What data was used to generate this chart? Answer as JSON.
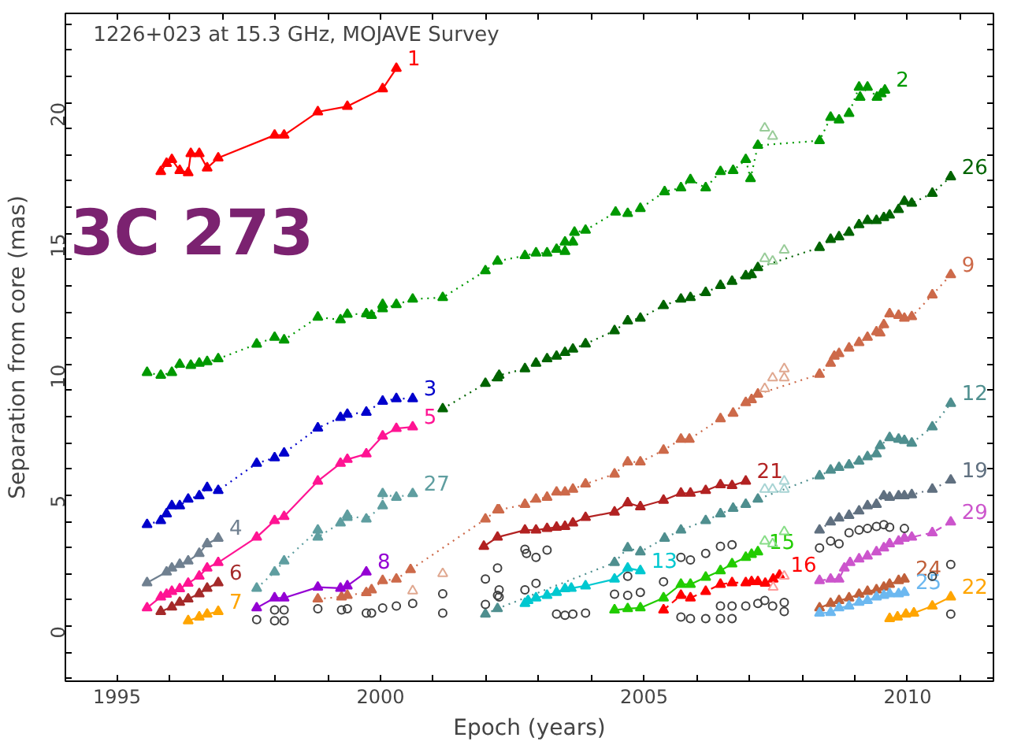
{
  "chart_data": {
    "type": "line",
    "title": "1226+023 at 15.3 GHz, MOJAVE Survey",
    "xlabel": "Epoch (years)",
    "ylabel": "Separation from core (mas)",
    "annotations": [
      "3C 273"
    ],
    "xlim": [
      1994.02,
      2011.63
    ],
    "ylim": [
      -2.1,
      23.4
    ],
    "grid": false,
    "marker": "triangle",
    "xticks": [
      1995,
      {
        "value": 1996,
        "label": null
      },
      {
        "value": 1997,
        "label": null
      },
      {
        "value": 1998,
        "label": null
      },
      {
        "value": 1999,
        "label": null
      },
      2000,
      {
        "value": 2001,
        "label": null
      },
      {
        "value": 2002,
        "label": null
      },
      {
        "value": 2003,
        "label": null
      },
      {
        "value": 2004,
        "label": null
      },
      2005,
      {
        "value": 2006,
        "label": null
      },
      {
        "value": 2007,
        "label": null
      },
      {
        "value": 2008,
        "label": null
      },
      {
        "value": 2009,
        "label": null
      },
      2010,
      {
        "value": 2011,
        "label": null
      }
    ],
    "yticks": [
      {
        "value": -2,
        "label": null
      },
      {
        "value": -1,
        "label": null
      },
      0,
      {
        "value": 1,
        "label": null
      },
      {
        "value": 2,
        "label": null
      },
      {
        "value": 3,
        "label": null
      },
      {
        "value": 4,
        "label": null
      },
      5,
      {
        "value": 6,
        "label": null
      },
      {
        "value": 7,
        "label": null
      },
      {
        "value": 8,
        "label": null
      },
      {
        "value": 9,
        "label": null
      },
      10,
      {
        "value": 11,
        "label": null
      },
      {
        "value": 12,
        "label": null
      },
      {
        "value": 13,
        "label": null
      },
      {
        "value": 14,
        "label": null
      },
      15,
      {
        "value": 16,
        "label": null
      },
      {
        "value": 17,
        "label": null
      },
      {
        "value": 18,
        "label": null
      },
      {
        "value": 19,
        "label": null
      },
      20,
      {
        "value": 21,
        "label": null
      },
      {
        "value": 22,
        "label": null
      },
      {
        "value": 23,
        "label": null
      }
    ],
    "series": [
      {
        "name": "1",
        "color": "#ff0000",
        "line_style": "solid",
        "x": [
          1995.83,
          1995.94,
          1996.04,
          1996.19,
          1996.35,
          1996.4,
          1996.56,
          1996.71,
          1996.92,
          1997.99,
          1998.17,
          1998.81,
          1999.37,
          2000.04,
          2000.3
        ],
        "values": [
          17.36,
          17.67,
          17.82,
          17.4,
          17.32,
          18.05,
          18.05,
          17.5,
          17.88,
          18.75,
          18.75,
          19.64,
          19.85,
          20.52,
          21.3
        ]
      },
      {
        "name": "2",
        "color": "#009900",
        "line_style": "dotted",
        "x": [
          1995.57,
          1995.83,
          1996.04,
          1996.19,
          1996.4,
          1996.56,
          1996.71,
          1996.92,
          1997.65,
          1997.99,
          1998.17,
          1998.81,
          1999.24,
          1999.37,
          1999.73,
          1999.83,
          2000.04,
          2000.04,
          2000.3,
          2000.61,
          2001.18,
          2001.99,
          2002.22,
          2002.74,
          2002.95,
          2003.16,
          2003.34,
          2003.5,
          2003.5,
          2003.65,
          2003.68,
          2003.89,
          2004.46,
          2004.69,
          2004.93,
          2005.39,
          2005.7,
          2005.88,
          2006.17,
          2006.45,
          2006.69,
          2006.93,
          2007.02,
          2007.16,
          2008.33,
          2008.54,
          2008.7,
          2008.89,
          2009.08,
          2009.1,
          2009.24,
          2009.42,
          2009.5,
          2009.57
        ],
        "values": [
          9.69,
          9.58,
          9.69,
          10.0,
          9.96,
          10.04,
          10.1,
          10.21,
          10.77,
          11.03,
          10.93,
          11.8,
          11.7,
          11.91,
          11.93,
          11.87,
          12.28,
          12.12,
          12.28,
          12.49,
          12.55,
          13.57,
          13.94,
          14.15,
          14.25,
          14.25,
          14.39,
          14.67,
          14.31,
          14.67,
          15.04,
          15.12,
          15.81,
          15.76,
          15.95,
          16.59,
          16.74,
          17.05,
          16.74,
          17.36,
          17.4,
          17.82,
          17.09,
          18.36,
          18.54,
          19.43,
          19.33,
          19.58,
          20.58,
          20.2,
          20.58,
          20.2,
          20.33,
          20.47
        ]
      },
      {
        "name": "26",
        "color": "#006400",
        "line_style": "dotted",
        "x": [
          2001.18,
          2001.99,
          2002.22,
          2002.25,
          2002.74,
          2002.95,
          2003.16,
          2003.34,
          2003.5,
          2003.65,
          2003.89,
          2004.44,
          2004.69,
          2004.93,
          2005.37,
          2005.7,
          2005.88,
          2006.17,
          2006.45,
          2006.67,
          2006.93,
          2007.04,
          2007.16,
          2008.33,
          2008.54,
          2008.7,
          2008.89,
          2009.08,
          2009.24,
          2009.41,
          2009.55,
          2009.66,
          2009.83,
          2009.94,
          2010.08,
          2010.47,
          2010.82
        ],
        "values": [
          8.3,
          9.27,
          9.48,
          9.58,
          9.83,
          10.04,
          10.21,
          10.31,
          10.45,
          10.58,
          10.78,
          11.28,
          11.66,
          11.76,
          12.24,
          12.49,
          12.55,
          12.74,
          13.01,
          13.17,
          13.38,
          13.42,
          13.69,
          14.46,
          14.77,
          14.87,
          15.04,
          15.33,
          15.49,
          15.49,
          15.6,
          15.7,
          15.91,
          16.22,
          16.15,
          16.53,
          17.16
        ]
      },
      {
        "name": "9",
        "color": "#cd6a4a",
        "line_style": "dotted",
        "x": [
          1998.81,
          1999.26,
          1999.37,
          1999.73,
          1999.83,
          2000.04,
          2000.3,
          2000.57,
          2001.99,
          2002.22,
          2002.25,
          2002.74,
          2002.95,
          2003.16,
          2003.34,
          2003.5,
          2003.65,
          2003.89,
          2004.44,
          2004.69,
          2004.93,
          2005.37,
          2005.7,
          2005.86,
          2006.45,
          2006.69,
          2006.93,
          2007.04,
          2007.16,
          2008.33,
          2008.54,
          2008.61,
          2008.7,
          2008.89,
          2009.08,
          2009.24,
          2009.41,
          2009.48,
          2009.55,
          2009.66,
          2009.83,
          2009.94,
          2010.08,
          2010.47,
          2010.82
        ],
        "values": [
          1.04,
          1.12,
          1.18,
          1.28,
          1.39,
          1.74,
          1.8,
          2.16,
          4.09,
          4.44,
          4.44,
          4.65,
          4.85,
          4.92,
          5.12,
          5.12,
          5.23,
          5.43,
          5.81,
          6.27,
          6.27,
          6.72,
          7.14,
          7.14,
          7.92,
          8.13,
          8.54,
          8.65,
          8.86,
          9.62,
          10.04,
          10.31,
          10.41,
          10.62,
          10.83,
          11.03,
          11.24,
          11.2,
          11.51,
          11.93,
          11.87,
          11.76,
          11.82,
          12.65,
          13.42
        ]
      },
      {
        "name": "3",
        "color": "#0000cc",
        "line_style": "dotted",
        "x": [
          1995.57,
          1995.83,
          1995.94,
          1996.04,
          1996.19,
          1996.35,
          1996.56,
          1996.71,
          1996.92,
          1997.65,
          1997.99,
          1998.17,
          1998.81,
          1999.24,
          1999.37,
          1999.73,
          2000.04,
          2000.3,
          2000.61
        ],
        "values": [
          3.88,
          4.03,
          4.29,
          4.6,
          4.6,
          4.85,
          4.98,
          5.29,
          5.18,
          6.22,
          6.43,
          6.61,
          7.57,
          7.97,
          8.09,
          8.17,
          8.59,
          8.69,
          8.69
        ]
      },
      {
        "name": "5",
        "color": "#ff1493",
        "line_style": "solid",
        "x": [
          1995.57,
          1995.83,
          1995.94,
          1996.04,
          1996.19,
          1996.35,
          1996.56,
          1996.71,
          1996.92,
          1997.65,
          1997.99,
          1998.17,
          1998.81,
          1999.24,
          1999.37,
          1999.73,
          2000.04,
          2000.3,
          2000.61
        ],
        "values": [
          0.7,
          1.12,
          1.22,
          1.33,
          1.43,
          1.64,
          1.91,
          2.22,
          2.43,
          3.4,
          4.03,
          4.19,
          5.54,
          6.22,
          6.37,
          6.58,
          7.26,
          7.55,
          7.61
        ]
      },
      {
        "name": "27",
        "color": "#5f9ea0",
        "line_style": "dotted",
        "x": [
          1997.65,
          1997.99,
          1998.17,
          1998.81,
          1998.81,
          1999.24,
          1999.37,
          1999.37,
          1999.73,
          2000.04,
          2000.04,
          2000.3,
          2000.61
        ],
        "values": [
          1.45,
          2.07,
          2.49,
          3.67,
          3.4,
          3.94,
          4.15,
          4.23,
          4.09,
          4.6,
          5.06,
          4.92,
          5.06
        ]
      },
      {
        "name": "4",
        "color": "#708090",
        "line_style": "solid",
        "x": [
          1995.57,
          1995.94,
          1996.04,
          1996.19,
          1996.35,
          1996.56,
          1996.71,
          1996.92
        ],
        "values": [
          1.66,
          2.07,
          2.22,
          2.36,
          2.49,
          2.78,
          3.15,
          3.36
        ]
      },
      {
        "name": "6",
        "color": "#a52a2a",
        "line_style": "solid",
        "x": [
          1995.83,
          1996.04,
          1996.19,
          1996.35,
          1996.56,
          1996.71,
          1996.92
        ],
        "values": [
          0.56,
          0.73,
          0.91,
          1.04,
          1.24,
          1.45,
          1.66
        ]
      },
      {
        "name": "7",
        "color": "#ffa500",
        "line_style": "solid",
        "x": [
          1996.35,
          1996.56,
          1996.71,
          1996.92
        ],
        "values": [
          0.21,
          0.35,
          0.46,
          0.56
        ]
      },
      {
        "name": "8",
        "color": "#9400d3",
        "line_style": "solid",
        "x": [
          1997.65,
          1997.99,
          1998.17,
          1998.81,
          1999.24,
          1999.37,
          1999.73
        ],
        "values": [
          0.7,
          1.08,
          1.08,
          1.49,
          1.45,
          1.54,
          2.07
        ]
      },
      {
        "name": "21",
        "color": "#b22222",
        "line_style": "solid",
        "x": [
          2001.96,
          2002.22,
          2002.74,
          2002.95,
          2003.16,
          2003.34,
          2003.5,
          2003.65,
          2003.89,
          2004.44,
          2004.69,
          2004.93,
          2005.37,
          2005.7,
          2005.88,
          2006.17,
          2006.45,
          2006.67,
          2006.93
        ],
        "values": [
          3.05,
          3.4,
          3.67,
          3.67,
          3.73,
          3.78,
          3.81,
          3.94,
          4.15,
          4.36,
          4.71,
          4.56,
          4.81,
          5.08,
          5.08,
          5.18,
          5.4,
          5.37,
          5.54
        ]
      },
      {
        "name": "12",
        "color": "#4f8f8f",
        "line_style": "dotted",
        "x": [
          2001.99,
          2002.22,
          2004.44,
          2004.69,
          2004.93,
          2005.39,
          2005.7,
          2006.17,
          2006.45,
          2006.69,
          2006.93,
          2007.16,
          2008.33,
          2008.54,
          2008.7,
          2008.89,
          2009.08,
          2009.24,
          2009.41,
          2009.48,
          2009.66,
          2009.83,
          2009.94,
          2010.08,
          2010.47,
          2010.82
        ],
        "values": [
          0.46,
          0.67,
          2.43,
          2.99,
          2.84,
          3.36,
          3.67,
          4.03,
          4.29,
          4.5,
          4.65,
          4.85,
          5.74,
          5.96,
          6.06,
          6.16,
          6.3,
          6.47,
          6.58,
          6.89,
          7.2,
          7.14,
          7.09,
          6.99,
          7.61,
          8.51
        ]
      },
      {
        "name": "19",
        "color": "#607080",
        "line_style": "dotted",
        "x": [
          2008.33,
          2008.54,
          2008.7,
          2008.89,
          2009.08,
          2009.24,
          2009.41,
          2009.55,
          2009.66,
          2009.83,
          2009.94,
          2010.08,
          2010.47,
          2010.82
        ],
        "values": [
          3.67,
          3.98,
          4.13,
          4.23,
          4.4,
          4.6,
          4.65,
          4.98,
          4.92,
          4.98,
          4.98,
          5.02,
          5.23,
          5.58
        ]
      },
      {
        "name": "29",
        "color": "#cc55cc",
        "line_style": "dashed",
        "x": [
          2008.33,
          2008.54,
          2008.7,
          2008.8,
          2008.91,
          2009.08,
          2009.24,
          2009.41,
          2009.55,
          2009.66,
          2009.83,
          2009.94,
          2010.08,
          2010.47,
          2010.82
        ],
        "values": [
          1.74,
          1.8,
          1.8,
          2.22,
          2.43,
          2.57,
          2.68,
          2.84,
          2.99,
          3.15,
          3.25,
          3.36,
          3.4,
          3.57,
          3.98
        ]
      },
      {
        "name": "24",
        "color": "#c0603a",
        "line_style": "solid",
        "x": [
          2008.33,
          2008.54,
          2008.7,
          2008.89,
          2009.08,
          2009.24,
          2009.41,
          2009.55,
          2009.66,
          2009.83,
          2009.94
        ],
        "values": [
          0.7,
          0.87,
          0.98,
          1.08,
          1.22,
          1.33,
          1.39,
          1.49,
          1.6,
          1.74,
          1.8
        ]
      },
      {
        "name": "25",
        "color": "#6cb8f0",
        "line_style": "solid",
        "x": [
          2008.33,
          2008.54,
          2008.7,
          2008.89,
          2009.08,
          2009.24,
          2009.41,
          2009.55,
          2009.66,
          2009.83,
          2009.94
        ],
        "values": [
          0.5,
          0.52,
          0.7,
          0.77,
          0.91,
          0.98,
          1.12,
          1.18,
          1.24,
          1.24,
          1.29
        ]
      },
      {
        "name": "22",
        "color": "#ffa500",
        "line_style": "solid",
        "x": [
          2009.66,
          2009.81,
          2009.97,
          2010.12,
          2010.47,
          2010.82
        ],
        "values": [
          0.29,
          0.35,
          0.46,
          0.5,
          0.77,
          1.12
        ]
      },
      {
        "name": "13",
        "color": "#00c8d0",
        "line_style": "solid",
        "x": [
          2002.74,
          2002.8,
          2002.95,
          2003.16,
          2003.34,
          2003.5,
          2003.62,
          2003.89,
          2004.44,
          2004.69,
          2004.93
        ],
        "values": [
          0.87,
          0.98,
          1.08,
          1.18,
          1.29,
          1.43,
          1.45,
          1.54,
          1.8,
          2.22,
          2.12
        ]
      },
      {
        "name": "15",
        "color": "#22cc00",
        "line_style": "solid",
        "x": [
          2004.44,
          2004.69,
          2004.93,
          2005.37,
          2005.7,
          2005.88,
          2006.17,
          2006.45,
          2006.67,
          2006.93,
          2007.04,
          2007.16
        ],
        "values": [
          0.62,
          0.67,
          0.7,
          1.08,
          1.6,
          1.6,
          1.87,
          2.12,
          2.38,
          2.63,
          2.74,
          2.84
        ]
      },
      {
        "name": "16",
        "color": "#ff0000",
        "line_style": "dashed",
        "x": [
          2005.37,
          2005.7,
          2005.88,
          2006.17,
          2006.45,
          2006.67,
          2006.93,
          2007.04,
          2007.16,
          2007.3,
          2007.45,
          2007.57
        ],
        "values": [
          0.62,
          1.18,
          1.08,
          1.33,
          1.6,
          1.66,
          1.66,
          1.7,
          1.7,
          1.64,
          1.8,
          1.95
        ]
      },
      {
        "type": "scatter",
        "marker": "triangle",
        "colors": [
          "#99cc99",
          "#99cc99",
          "#99cc99",
          "#99cc99",
          "#99cc99",
          "#e0a890",
          "#e0a890",
          "#e0a890",
          "#e0a890",
          "#e0a890",
          "#e0a890",
          "#a8d4d4",
          "#a8d4d4",
          "#a8d4d4",
          "#a8d4d4",
          "#88dd88",
          "#88dd88",
          "#88dd88",
          "#ff9999",
          "#ff9999"
        ],
        "x": [
          2007.29,
          2007.44,
          2007.29,
          2007.44,
          2007.66,
          2007.29,
          2007.44,
          2007.66,
          2007.66,
          2001.18,
          2000.61,
          2007.29,
          2007.44,
          2007.66,
          2007.66,
          2007.29,
          2007.44,
          2007.66,
          2007.45,
          2007.66
        ],
        "values": [
          19.02,
          18.71,
          14.04,
          13.94,
          14.36,
          9.07,
          9.48,
          9.48,
          9.83,
          2.01,
          1.35,
          5.23,
          5.23,
          5.23,
          5.54,
          3.25,
          3.15,
          3.61,
          1.49,
          1.91
        ]
      },
      {
        "type": "scatter",
        "marker": "circle",
        "color": "#404040",
        "x": [
          1997.65,
          1997.99,
          1998.17,
          1997.99,
          1998.17,
          1998.81,
          1999.26,
          1999.37,
          1999.73,
          1999.83,
          2000.04,
          2000.3,
          2000.61,
          2001.18,
          2001.18,
          2001.99,
          2001.99,
          2002.22,
          2002.22,
          2002.74,
          2002.77,
          2002.95,
          2003.16,
          2002.25,
          2002.25,
          2002.95,
          2002.74,
          2003.34,
          2003.5,
          2003.65,
          2003.89,
          2004.44,
          2004.69,
          2004.93,
          2004.69,
          2005.37,
          2005.7,
          2005.88,
          2005.7,
          2005.88,
          2006.17,
          2006.45,
          2006.67,
          2006.17,
          2006.45,
          2006.67,
          2006.45,
          2006.67,
          2006.93,
          2007.16,
          2007.29,
          2007.44,
          2007.66,
          2007.66,
          2008.33,
          2008.54,
          2008.7,
          2008.89,
          2009.08,
          2009.24,
          2009.41,
          2009.55,
          2009.66,
          2009.94,
          2010.82,
          2010.82,
          2010.47
        ],
        "values": [
          0.25,
          0.62,
          0.62,
          0.21,
          0.21,
          0.67,
          0.62,
          0.67,
          0.5,
          0.5,
          0.7,
          0.77,
          0.87,
          0.5,
          1.24,
          1.8,
          0.83,
          1.18,
          2.22,
          2.94,
          2.78,
          2.63,
          2.91,
          1.39,
          1.12,
          1.64,
          1.39,
          0.46,
          0.42,
          0.46,
          0.5,
          1.22,
          1.18,
          1.29,
          1.91,
          1.7,
          2.63,
          2.53,
          0.35,
          0.29,
          0.29,
          0.29,
          0.29,
          2.78,
          3.05,
          3.11,
          0.77,
          0.77,
          0.77,
          0.87,
          0.98,
          0.77,
          0.91,
          0.56,
          2.99,
          3.25,
          3.15,
          3.57,
          3.67,
          3.73,
          3.81,
          3.88,
          3.78,
          3.73,
          2.36,
          0.46,
          1.91
        ]
      }
    ]
  }
}
